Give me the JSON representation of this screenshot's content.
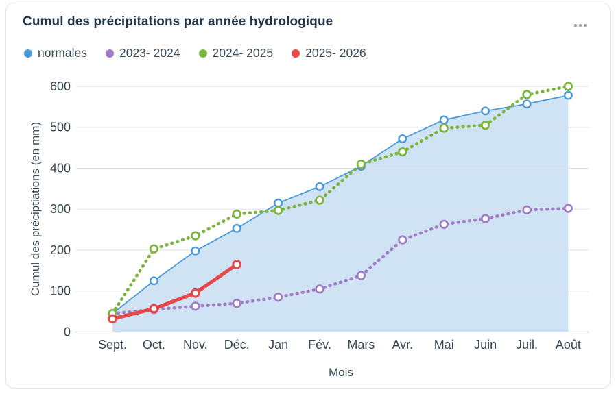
{
  "card": {
    "title": "Cumul des précipitations par année hydrologique",
    "more_options_icon": "ellipsis-icon"
  },
  "chart_data": {
    "type": "line",
    "title": "Cumul des précipitations par année hydrologique",
    "xlabel": "Mois",
    "ylabel": "Cumul des préciptiations (en mm)",
    "categories": [
      "Sept.",
      "Oct.",
      "Nov.",
      "Déc.",
      "Jan",
      "Fév.",
      "Mars",
      "Avr.",
      "Mai",
      "Juin",
      "Juil.",
      "Août"
    ],
    "y_ticks": [
      0,
      100,
      200,
      300,
      400,
      500,
      600
    ],
    "ylim": [
      0,
      600
    ],
    "grid": true,
    "legend_position": "top-left",
    "series": [
      {
        "name": "normales",
        "color": "#4a99d9",
        "style": "area",
        "fill": "#c3dcf3",
        "values": [
          45,
          125,
          198,
          253,
          315,
          355,
          405,
          472,
          518,
          540,
          557,
          578
        ]
      },
      {
        "name": "2023- 2024",
        "color": "#a07cc5",
        "style": "dotted",
        "values": [
          45,
          55,
          63,
          70,
          85,
          105,
          138,
          225,
          263,
          277,
          298,
          302
        ]
      },
      {
        "name": "2024- 2025",
        "color": "#7cb53e",
        "style": "dotted",
        "values": [
          45,
          203,
          235,
          288,
          297,
          322,
          410,
          440,
          498,
          505,
          580,
          600
        ]
      },
      {
        "name": "2025- 2026",
        "color": "#e64747",
        "style": "solid",
        "values": [
          32,
          57,
          95,
          165
        ]
      }
    ]
  }
}
